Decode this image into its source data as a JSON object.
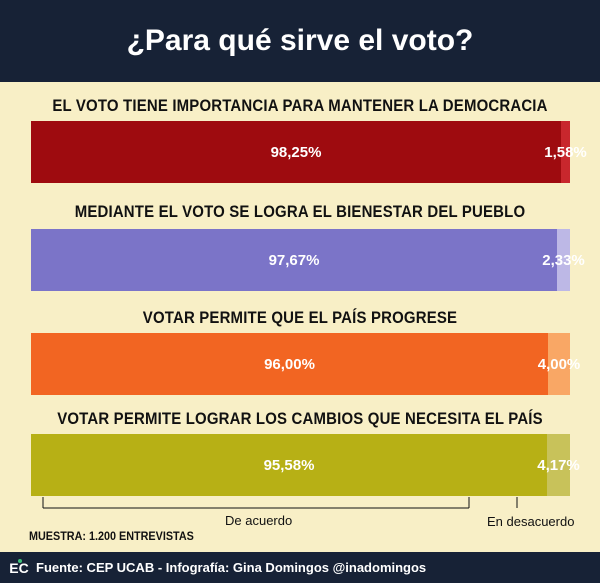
{
  "header": {
    "title": "¿Para qué sirve el voto?"
  },
  "chart_data": {
    "type": "bar",
    "orientation": "horizontal-stacked-100",
    "title": "¿Para qué sirve el voto?",
    "series": [
      {
        "name": "De acuerdo"
      },
      {
        "name": "En desacuerdo"
      }
    ],
    "questions": [
      {
        "label": "EL VOTO TIENE IMPORTANCIA PARA MANTENER LA DEMOCRACIA",
        "agree": 98.25,
        "agree_label": "98,25%",
        "disagree": 1.58,
        "disagree_label": "1,58%",
        "agree_color": "#9e0b0f",
        "disagree_color": "#c8272d"
      },
      {
        "label": "MEDIANTE EL VOTO SE LOGRA EL BIENESTAR DEL PUEBLO",
        "agree": 97.67,
        "agree_label": "97,67%",
        "disagree": 2.33,
        "disagree_label": "2,33%",
        "agree_color": "#7b74c8",
        "disagree_color": "#bdb8e6"
      },
      {
        "label": "VOTAR PERMITE QUE EL PAÍS PROGRESE",
        "agree": 96.0,
        "agree_label": "96,00%",
        "disagree": 4.0,
        "disagree_label": "4,00%",
        "agree_color": "#f26522",
        "disagree_color": "#f9a765"
      },
      {
        "label": "VOTAR PERMITE LOGRAR LOS CAMBIOS QUE NECESITA EL PAÍS",
        "agree": 95.58,
        "agree_label": "95,58%",
        "disagree": 4.17,
        "disagree_label": "4,17%",
        "agree_color": "#b7b015",
        "disagree_color": "#c8c25a"
      }
    ]
  },
  "legend": {
    "agree_label": "De acuerdo",
    "disagree_label": "En desacuerdo"
  },
  "sample": {
    "text": "MUESTRA: 1.200 ENTREVISTAS"
  },
  "footer": {
    "logo": "EC",
    "credits": "Fuente: CEP UCAB - Infografía: Gina Domingos @inadomingos"
  },
  "colors": {
    "background": "#f8efc6",
    "header_bg": "#172236"
  }
}
